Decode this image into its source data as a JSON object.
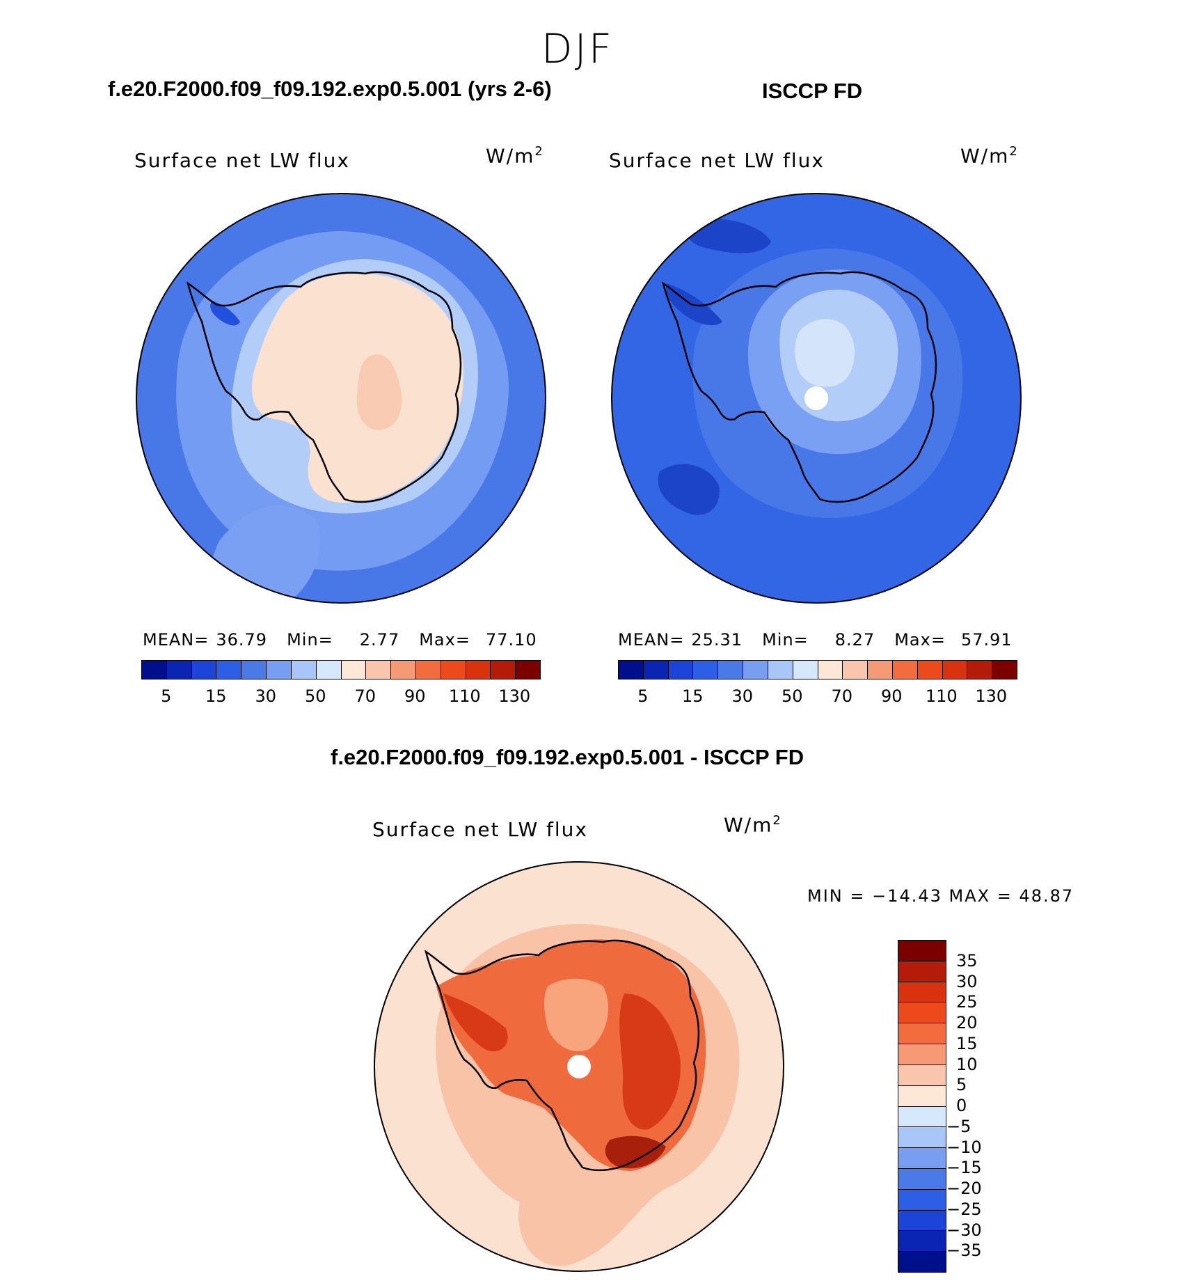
{
  "season": "DJF",
  "panels": [
    {
      "case_title": "f.e20.F2000.f09_f09.192.exp0.5.001 (yrs 2-6)",
      "label": "Surface net LW flux",
      "units_base": "W/m",
      "units_exp": "2",
      "stats": {
        "mean_label": "MEAN=",
        "mean": "36.79",
        "min_label": "Min=",
        "min": "2.77",
        "max_label": "Max=",
        "max": "77.10"
      },
      "map": {
        "ocean": "#4878e8",
        "ring": "#7aa0f4",
        "inner_ring": "#b3cdf9",
        "land": "#fbe1d0",
        "interior": "#f8cbb2",
        "patch": "#2050dc"
      }
    },
    {
      "case_title": "ISCCP FD",
      "label": "Surface net LW flux",
      "units_base": "W/m",
      "units_exp": "2",
      "stats": {
        "mean_label": "MEAN=",
        "mean": "25.31",
        "min_label": "Min=",
        "min": "8.27",
        "max_label": "Max=",
        "max": "57.91"
      },
      "map": {
        "ocean": "#3266e4",
        "ring": "#4878e8",
        "inner_ring": "#7aa0f4",
        "land": "#b3cdf9",
        "interior": "#d4e5fb",
        "patch": "#1c44c8"
      }
    }
  ],
  "diff": {
    "title": "f.e20.F2000.f09_f09.192.exp0.5.001 - ISCCP FD",
    "label": "Surface net LW flux",
    "units_base": "W/m",
    "units_exp": "2",
    "stats": "MIN = −14.43 MAX =   48.87",
    "map": {
      "ocean": "#fbe1d0",
      "ring": "#f8c3a6",
      "land": "#ef6a3c",
      "interior": "#f8a47c",
      "coast": "#d83a18",
      "patch": "#a8200c"
    }
  },
  "abs_colorbar": {
    "colors": [
      "#000f8c",
      "#0a24b4",
      "#1c44d8",
      "#2d5ee6",
      "#4a7ae8",
      "#789ef2",
      "#a9c6f8",
      "#d6e8fb",
      "#fde7d7",
      "#f9c6ad",
      "#f59a74",
      "#f26c3e",
      "#ed4a1c",
      "#d8330e",
      "#b41b08",
      "#7d0000"
    ],
    "ticks": [
      "5",
      "15",
      "30",
      "50",
      "70",
      "90",
      "110",
      "130"
    ]
  },
  "diff_colorbar": {
    "colors": [
      "#7d0000",
      "#b41b08",
      "#d8330e",
      "#ed4a1c",
      "#f26c3e",
      "#f59a74",
      "#f9c6ad",
      "#fde7d7",
      "#d6e8fb",
      "#a9c6f8",
      "#789ef2",
      "#4a7ae8",
      "#2d5ee6",
      "#1c44d8",
      "#0a24b4",
      "#000f8c"
    ],
    "ticks": [
      "35",
      "30",
      "25",
      "20",
      "15",
      "10",
      "5",
      "0",
      "−5",
      "−10",
      "−15",
      "−20",
      "−25",
      "−30",
      "−35"
    ]
  }
}
